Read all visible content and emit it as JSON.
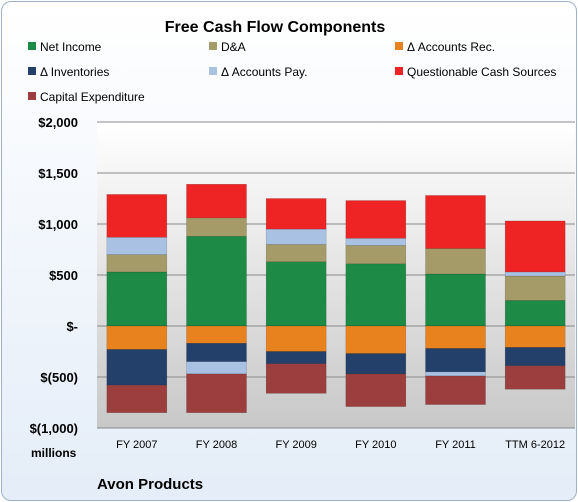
{
  "chart_data": {
    "type": "bar",
    "stacked": true,
    "title": "Free Cash Flow Components",
    "unit_label": "millions",
    "company": "Avon Products",
    "categories": [
      "FY 2007",
      "FY 2008",
      "FY 2009",
      "FY 2010",
      "FY 2011",
      "TTM 6-2012"
    ],
    "ylim": [
      -1000,
      2000
    ],
    "yticks": [
      2000,
      1500,
      1000,
      500,
      0,
      -500,
      -1000
    ],
    "ytick_labels": [
      "$2,000",
      "$1,500",
      "$1,000",
      "$500",
      "$-",
      "$(500)",
      "$(1,000)"
    ],
    "grid": true,
    "legend_position": "top",
    "series": [
      {
        "name": "Net Income",
        "color": "#1d8a45",
        "values": [
          530,
          880,
          630,
          610,
          510,
          250
        ]
      },
      {
        "name": "D&A",
        "color": "#a49b68",
        "values": [
          170,
          180,
          170,
          180,
          250,
          240
        ]
      },
      {
        "name": "Δ Accounts Rec.",
        "color": "#e8821e",
        "values": [
          -230,
          -170,
          -250,
          -270,
          -220,
          -210
        ]
      },
      {
        "name": "Δ Inventories",
        "color": "#23406a",
        "values": [
          -350,
          -180,
          -120,
          -200,
          -230,
          -180
        ]
      },
      {
        "name": "Δ Accounts Pay.",
        "color": "#a9c2e4",
        "values": [
          170,
          -120,
          150,
          70,
          -40,
          40
        ]
      },
      {
        "name": "Questionable Cash Sources",
        "color": "#ee2424",
        "values": [
          420,
          330,
          300,
          370,
          520,
          500
        ]
      },
      {
        "name": "Capital Expenditure",
        "color": "#9c3e3d",
        "values": [
          -270,
          -380,
          -290,
          -320,
          -280,
          -230
        ]
      }
    ]
  }
}
